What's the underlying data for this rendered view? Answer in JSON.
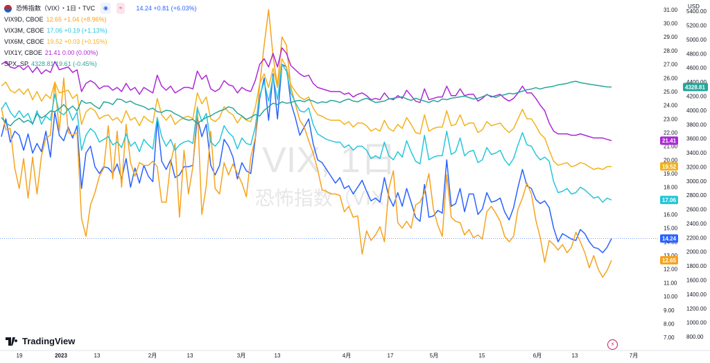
{
  "header": {
    "symbol": "恐怖指数（VIX）・1日・TVC",
    "main_value": "14.24 +0.81 (+6.03%)",
    "main_color": "#2962ff"
  },
  "legend": [
    {
      "name": "VIX9D, CBOE",
      "value": "12.65 +1.04 (+8.96%)",
      "color": "#f7a21b"
    },
    {
      "name": "VIX3M, CBOE",
      "value": "17.06 +0.19 (+1.13%)",
      "color": "#26c6da"
    },
    {
      "name": "VIX6M, CBOE",
      "value": "19.52 +0.03 (+0.15%)",
      "color": "#f2b21c"
    },
    {
      "name": "VIX1Y, CBOE",
      "value": "21.41 0.00 (0.00%)",
      "color": "#ab28d6"
    },
    {
      "name": "SPX, SP",
      "value": "4328.81 19.61 (-0.45%)",
      "color": "#26a69a"
    }
  ],
  "watermark": {
    "line1": "VIX, 1日",
    "line2": "恐怖指数（VIX）"
  },
  "brand": "TradingView",
  "chart_data": {
    "type": "line",
    "left_axis_ticks": [
      "7.00",
      "8.00",
      "9.00",
      "10.00",
      "11.00",
      "12.00",
      "13.00",
      "14.00",
      "15.00",
      "16.00",
      "17.00",
      "18.00",
      "19.00",
      "20.00",
      "21.00",
      "22.00",
      "23.00",
      "24.00",
      "25.00",
      "26.00",
      "27.00",
      "28.00",
      "29.00",
      "30.00",
      "31.00"
    ],
    "left_axis_range": [
      6.6,
      31.4
    ],
    "right_axis_unit": "USD",
    "right_axis_ticks": [
      "800.00",
      "1000.00",
      "1200.00",
      "1400.00",
      "1600.00",
      "1800.00",
      "2000.00",
      "2200.00",
      "2400.00",
      "2600.00",
      "2800.00",
      "3000.00",
      "3200.00",
      "3400.00",
      "3600.00",
      "3800.00",
      "4000.00",
      "4200.00",
      "4400.00",
      "4600.00",
      "4800.00",
      "5000.00",
      "5200.00",
      "5400.00"
    ],
    "x_ticks": [
      "19",
      "2023",
      "13",
      "2月",
      "13",
      "3月",
      "13",
      "4月",
      "17",
      "5月",
      "15",
      "6月",
      "13",
      "7月"
    ],
    "price_labels": [
      {
        "text": "4328.81",
        "color": "#26a69a"
      },
      {
        "text": "21.41",
        "color": "#ab28d6"
      },
      {
        "text": "19.52",
        "color": "#f2b21c"
      },
      {
        "text": "17.06",
        "color": "#26c6da"
      },
      {
        "text": "14.24",
        "color": "#2962ff"
      },
      {
        "text": "12.65",
        "color": "#f7a21b"
      }
    ],
    "series": [
      {
        "name": "VIX",
        "color": "#2962ff",
        "values": [
          21.7,
          23.0,
          21.3,
          22.1,
          21.8,
          20.7,
          21.9,
          20.5,
          21.2,
          20.6,
          22.1,
          20.2,
          23.5,
          21.8,
          21.4,
          22.4,
          21.6,
          22.5,
          17.9,
          20.5,
          21.0,
          19.5,
          19.0,
          19.5,
          19.4,
          19.0,
          19.7,
          18.6,
          20.1,
          18.0,
          19.4,
          18.3,
          19.6,
          18.8,
          18.4,
          22.9,
          19.9,
          19.3,
          20.0,
          18.7,
          18.9,
          19.5,
          19.5,
          19.6,
          23.1,
          21.7,
          22.6,
          19.6,
          18.9,
          19.6,
          21.5,
          21.0,
          20.2,
          18.6,
          19.8,
          19.2,
          19.0,
          21.5,
          24.5,
          26.0,
          22.9,
          26.3,
          23.0,
          27.0,
          26.8,
          24.2,
          23.1,
          21.8,
          22.4,
          23.0,
          21.2,
          20.0,
          19.8,
          19.3,
          18.8,
          18.3,
          18.7,
          17.9,
          18.1,
          17.5,
          18.0,
          18.5,
          17.7,
          17.0,
          17.2,
          16.9,
          18.7,
          17.3,
          16.6,
          17.6,
          16.6,
          17.9,
          16.9,
          15.8,
          15.5,
          18.2,
          15.8,
          15.9,
          16.3,
          16.1,
          20.0,
          16.6,
          16.8,
          17.9,
          16.2,
          17.5,
          17.5,
          16.0,
          16.4,
          17.6,
          16.9,
          17.0,
          17.2,
          16.2,
          15.6,
          16.5,
          18.0,
          19.3,
          18.1,
          17.9,
          17.1,
          16.8,
          17.0,
          16.5,
          15.0,
          14.0,
          14.6,
          14.4,
          14.2,
          14.1,
          14.9,
          14.6,
          14.0,
          13.6,
          13.5,
          13.2,
          13.6,
          14.24
        ]
      },
      {
        "name": "VIX9D",
        "color": "#f7a21b",
        "values": [
          23.8,
          22.2,
          22.3,
          19.4,
          17.9,
          20.1,
          17.2,
          20.2,
          17.5,
          20.3,
          21.6,
          21.8,
          25.7,
          22.1,
          26.0,
          22.0,
          21.8,
          22.0,
          15.7,
          14.4,
          16.7,
          17.6,
          18.8,
          19.4,
          22.5,
          18.6,
          22.1,
          18.0,
          22.6,
          19.8,
          18.8,
          19.8,
          19.6,
          19.6,
          19.9,
          19.5,
          16.9,
          16.9,
          19.8,
          21.2,
          15.8,
          20.7,
          17.5,
          19.5,
          23.9,
          16.0,
          18.1,
          22.1,
          17.9,
          17.5,
          19.8,
          18.9,
          19.7,
          19.0,
          18.3,
          17.3,
          20.2,
          21.6,
          25.5,
          28.4,
          31.0,
          27.6,
          25.4,
          29.0,
          28.4,
          25.3,
          24.1,
          22.9,
          22.4,
          21.4,
          20.5,
          19.3,
          17.8,
          17.7,
          17.5,
          17.5,
          17.4,
          16.2,
          16.6,
          15.8,
          15.9,
          13.1,
          14.8,
          14.1,
          14.5,
          15.1,
          14.0,
          17.9,
          19.2,
          15.4,
          15.0,
          15.5,
          15.0,
          16.7,
          16.9,
          17.6,
          19.0,
          16.4,
          15.2,
          14.4,
          18.9,
          15.8,
          15.5,
          15.4,
          14.5,
          14.9,
          14.3,
          14.5,
          14.2,
          16.2,
          16.6,
          16.1,
          15.5,
          14.4,
          14.0,
          14.4,
          16.4,
          17.2,
          18.3,
          17.5,
          15.6,
          14.3,
          12.5,
          14.1,
          13.8,
          13.4,
          13.8,
          13.2,
          13.6,
          14.7,
          14.0,
          13.2,
          12.1,
          13.0,
          12.0,
          11.4,
          11.9,
          12.65
        ]
      },
      {
        "name": "VIX3M",
        "color": "#26c6da",
        "values": [
          23.7,
          24.2,
          23.5,
          23.1,
          23.6,
          23.1,
          23.4,
          22.6,
          23.6,
          22.6,
          23.2,
          22.9,
          24.8,
          23.5,
          23.3,
          23.7,
          22.9,
          23.5,
          20.7,
          21.8,
          22.3,
          22.0,
          21.3,
          21.5,
          21.7,
          21.1,
          21.3,
          20.9,
          21.9,
          21.0,
          21.3,
          20.6,
          21.5,
          21.1,
          20.8,
          23.1,
          21.7,
          21.0,
          21.5,
          20.7,
          21.1,
          21.3,
          21.4,
          21.2,
          23.8,
          22.8,
          23.4,
          21.3,
          21.0,
          21.4,
          22.5,
          22.0,
          21.7,
          20.8,
          21.6,
          21.2,
          21.1,
          22.4,
          24.7,
          25.7,
          24.3,
          26.1,
          24.4,
          27.0,
          26.5,
          24.9,
          24.2,
          23.6,
          23.5,
          23.8,
          22.6,
          21.9,
          21.7,
          21.5,
          21.4,
          21.3,
          21.3,
          20.9,
          21.1,
          20.7,
          21.0,
          21.0,
          20.7,
          20.1,
          20.3,
          20.1,
          21.3,
          20.3,
          20.0,
          20.6,
          20.2,
          21.4,
          20.6,
          19.9,
          19.7,
          21.8,
          20.0,
          20.2,
          20.3,
          20.3,
          22.1,
          20.4,
          20.6,
          21.6,
          20.3,
          20.6,
          20.7,
          19.8,
          20.0,
          20.9,
          20.4,
          20.5,
          20.7,
          20.0,
          19.6,
          20.1,
          21.1,
          22.0,
          21.1,
          21.0,
          20.4,
          20.0,
          20.2,
          19.9,
          18.4,
          17.6,
          17.7,
          17.9,
          17.5,
          17.6,
          18.0,
          17.8,
          17.5,
          17.2,
          17.3,
          16.9,
          17.2,
          17.06
        ]
      },
      {
        "name": "VIX6M",
        "color": "#f2b21c",
        "values": [
          25.4,
          25.7,
          25.1,
          24.9,
          25.2,
          24.8,
          25.2,
          24.4,
          25.0,
          24.3,
          24.8,
          24.5,
          25.7,
          24.9,
          25.0,
          25.1,
          24.5,
          24.8,
          22.6,
          23.5,
          23.8,
          23.6,
          23.0,
          23.2,
          23.3,
          22.9,
          23.1,
          22.7,
          23.6,
          22.9,
          23.1,
          22.5,
          23.2,
          22.9,
          22.7,
          24.5,
          23.3,
          22.9,
          23.3,
          22.6,
          22.9,
          23.1,
          23.2,
          23.0,
          24.9,
          24.1,
          24.6,
          23.0,
          22.8,
          23.1,
          23.9,
          23.5,
          23.3,
          22.7,
          23.2,
          22.9,
          22.8,
          23.8,
          25.6,
          26.3,
          25.3,
          26.7,
          25.3,
          27.4,
          26.8,
          25.5,
          25.0,
          24.6,
          24.4,
          24.6,
          23.8,
          23.3,
          23.2,
          23.0,
          22.9,
          22.9,
          22.9,
          22.6,
          22.8,
          22.4,
          22.7,
          22.7,
          22.5,
          22.1,
          22.3,
          22.1,
          22.9,
          22.3,
          22.1,
          22.6,
          22.3,
          23.1,
          22.6,
          22.0,
          21.9,
          23.3,
          22.1,
          22.3,
          22.4,
          22.4,
          23.6,
          22.5,
          22.6,
          23.3,
          22.5,
          22.7,
          22.7,
          22.0,
          22.2,
          22.8,
          22.5,
          22.6,
          22.7,
          22.3,
          22.0,
          22.3,
          23.0,
          23.7,
          23.0,
          23.0,
          22.5,
          21.9,
          21.6,
          20.7,
          19.9,
          19.6,
          19.7,
          19.8,
          19.5,
          19.6,
          19.8,
          19.7,
          19.5,
          19.3,
          19.4,
          19.3,
          19.5,
          19.52
        ]
      },
      {
        "name": "VIX1Y",
        "color": "#ab28d6",
        "values": [
          27.0,
          27.2,
          26.8,
          26.7,
          26.9,
          26.6,
          26.9,
          26.4,
          26.8,
          26.3,
          26.6,
          26.4,
          27.2,
          26.6,
          26.7,
          26.8,
          26.4,
          26.6,
          25.0,
          25.6,
          25.8,
          25.6,
          25.2,
          25.4,
          25.4,
          25.1,
          25.3,
          25.0,
          25.6,
          25.1,
          25.3,
          24.8,
          25.3,
          25.1,
          24.9,
          26.2,
          25.4,
          25.1,
          25.4,
          24.9,
          25.1,
          25.3,
          25.3,
          25.2,
          26.5,
          25.9,
          26.2,
          25.2,
          25.0,
          25.2,
          25.8,
          25.5,
          25.4,
          24.9,
          25.3,
          25.1,
          25.0,
          25.8,
          27.0,
          27.4,
          26.8,
          27.8,
          26.8,
          28.2,
          27.8,
          26.9,
          26.6,
          26.3,
          26.1,
          26.2,
          25.6,
          25.3,
          25.2,
          25.1,
          25.0,
          25.0,
          25.0,
          24.8,
          24.9,
          24.6,
          24.8,
          24.9,
          24.7,
          24.4,
          24.5,
          24.4,
          24.9,
          24.5,
          24.4,
          24.7,
          24.5,
          25.1,
          24.7,
          24.3,
          24.2,
          25.2,
          24.4,
          24.5,
          24.6,
          24.6,
          25.4,
          24.7,
          24.7,
          25.2,
          24.7,
          24.8,
          24.8,
          24.3,
          24.5,
          24.8,
          24.6,
          24.7,
          24.8,
          24.5,
          24.3,
          24.5,
          24.9,
          25.4,
          24.9,
          24.9,
          24.5,
          24.0,
          23.6,
          22.7,
          22.1,
          21.9,
          21.9,
          21.9,
          21.8,
          21.8,
          21.9,
          21.8,
          21.7,
          21.6,
          21.6,
          21.6,
          21.5,
          21.41
        ]
      },
      {
        "name": "SPX",
        "color": "#26a69a",
        "values": [
          3900,
          3820,
          3780,
          3850,
          3890,
          3830,
          3860,
          3810,
          3950,
          3890,
          3930,
          3990,
          3980,
          4020,
          4080,
          4010,
          4060,
          3990,
          4140,
          4100,
          4110,
          4060,
          4020,
          4120,
          4110,
          4080,
          4160,
          4150,
          4110,
          4130,
          4090,
          4070,
          4050,
          4010,
          4030,
          3980,
          3970,
          4000,
          3990,
          3950,
          3920,
          3880,
          3860,
          3870,
          3810,
          3860,
          3900,
          3920,
          3960,
          3990,
          4010,
          4050,
          4030,
          3960,
          3920,
          3870,
          3900,
          3940,
          3920,
          4000,
          4050,
          4100,
          4080,
          4120,
          4100,
          4110,
          4130,
          4140,
          4120,
          4150,
          4130,
          4100,
          4120,
          4110,
          4140,
          4130,
          4110,
          4140,
          4160,
          4130,
          4120,
          4150,
          4170,
          4140,
          4110,
          4120,
          4130,
          4160,
          4170,
          4180,
          4190,
          4160,
          4140,
          4170,
          4150,
          4130,
          4110,
          4140,
          4120,
          4160,
          4150,
          4170,
          4180,
          4190,
          4200,
          4180,
          4160,
          4170,
          4190,
          4220,
          4200,
          4180,
          4210,
          4220,
          4240,
          4230,
          4250,
          4270,
          4290,
          4300,
          4320,
          4300,
          4320,
          4330,
          4340,
          4360,
          4370,
          4380,
          4400,
          4410,
          4390,
          4380,
          4370,
          4360,
          4350,
          4340,
          4330,
          4328.81
        ]
      }
    ]
  }
}
